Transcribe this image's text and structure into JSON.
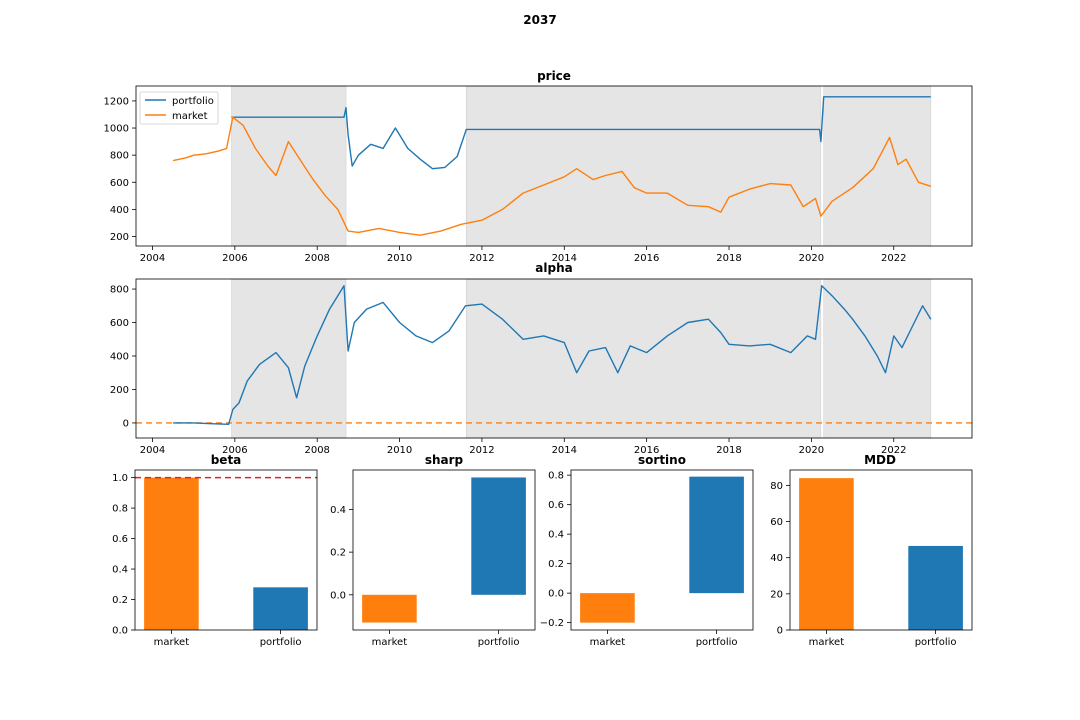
{
  "figure_title": "2037",
  "colors": {
    "portfolio": "#1f77b4",
    "market": "#ff7f0e",
    "shade": "#e5e5e5",
    "ref_line": "#d62728"
  },
  "shaded_periods": [
    [
      2005.92,
      2008.7
    ],
    [
      2011.62,
      2020.23
    ],
    [
      2020.3,
      2022.9
    ]
  ],
  "chart_data": [
    {
      "id": "price",
      "type": "line",
      "title": "price",
      "xlim": [
        2003.6,
        2023.9
      ],
      "ylim": [
        130,
        1310
      ],
      "xticks": [
        "2004",
        "2006",
        "2008",
        "2010",
        "2012",
        "2014",
        "2016",
        "2018",
        "2020",
        "2022"
      ],
      "yticks": [
        "200",
        "400",
        "600",
        "800",
        "1000",
        "1200"
      ],
      "legend": {
        "placement": "top-left",
        "entries": [
          "portfolio",
          "market"
        ]
      },
      "series": [
        {
          "name": "portfolio",
          "x": [
            2005.92,
            2008.65,
            2008.7,
            2008.75,
            2008.85,
            2009.0,
            2009.3,
            2009.6,
            2009.9,
            2010.2,
            2010.5,
            2010.8,
            2011.1,
            2011.4,
            2011.62,
            2020.2,
            2020.23,
            2020.3,
            2022.9
          ],
          "y": [
            1080,
            1080,
            1150,
            950,
            720,
            800,
            880,
            850,
            1000,
            850,
            770,
            700,
            710,
            790,
            990,
            990,
            900,
            1230,
            1230
          ]
        },
        {
          "name": "market",
          "x": [
            2004.5,
            2004.8,
            2005.0,
            2005.3,
            2005.6,
            2005.8,
            2005.95,
            2006.2,
            2006.5,
            2006.8,
            2007.0,
            2007.3,
            2007.6,
            2007.9,
            2008.2,
            2008.5,
            2008.75,
            2009.0,
            2009.5,
            2010.0,
            2010.5,
            2011.0,
            2011.5,
            2012.0,
            2012.5,
            2013.0,
            2013.5,
            2014.0,
            2014.3,
            2014.7,
            2015.0,
            2015.4,
            2015.7,
            2016.0,
            2016.5,
            2017.0,
            2017.5,
            2017.8,
            2018.0,
            2018.5,
            2019.0,
            2019.5,
            2019.8,
            2020.1,
            2020.23,
            2020.5,
            2021.0,
            2021.5,
            2021.9,
            2022.1,
            2022.3,
            2022.6,
            2022.9
          ],
          "y": [
            760,
            780,
            800,
            810,
            830,
            850,
            1080,
            1020,
            850,
            720,
            650,
            900,
            760,
            620,
            500,
            400,
            240,
            230,
            260,
            230,
            210,
            240,
            290,
            320,
            400,
            520,
            580,
            640,
            700,
            620,
            650,
            680,
            560,
            520,
            520,
            430,
            420,
            380,
            490,
            550,
            590,
            580,
            420,
            480,
            350,
            460,
            560,
            700,
            930,
            730,
            770,
            600,
            570
          ]
        }
      ]
    },
    {
      "id": "alpha",
      "type": "line",
      "title": "alpha",
      "xlim": [
        2003.6,
        2023.9
      ],
      "ylim": [
        -90,
        860
      ],
      "xticks": [
        "2004",
        "2006",
        "2008",
        "2010",
        "2012",
        "2014",
        "2016",
        "2018",
        "2020",
        "2022"
      ],
      "yticks": [
        "0",
        "200",
        "400",
        "600",
        "800"
      ],
      "reference_line": {
        "y": 0,
        "color": "#ff7f0e",
        "style": "dashed"
      },
      "series": [
        {
          "name": "alpha",
          "x": [
            2004.5,
            2005.0,
            2005.5,
            2005.85,
            2005.95,
            2006.1,
            2006.3,
            2006.6,
            2007.0,
            2007.3,
            2007.5,
            2007.7,
            2008.0,
            2008.3,
            2008.65,
            2008.75,
            2008.9,
            2009.2,
            2009.6,
            2010.0,
            2010.4,
            2010.8,
            2011.2,
            2011.6,
            2012.0,
            2012.5,
            2013.0,
            2013.5,
            2014.0,
            2014.3,
            2014.6,
            2015.0,
            2015.3,
            2015.6,
            2016.0,
            2016.5,
            2017.0,
            2017.5,
            2017.8,
            2018.0,
            2018.5,
            2019.0,
            2019.5,
            2019.9,
            2020.1,
            2020.25,
            2020.5,
            2020.8,
            2021.0,
            2021.3,
            2021.6,
            2021.8,
            2022.0,
            2022.2,
            2022.5,
            2022.7,
            2022.9
          ],
          "y": [
            0,
            0,
            -5,
            -8,
            80,
            120,
            250,
            350,
            420,
            330,
            150,
            340,
            520,
            680,
            820,
            430,
            600,
            680,
            720,
            600,
            520,
            480,
            550,
            700,
            710,
            620,
            500,
            520,
            480,
            300,
            430,
            450,
            300,
            460,
            420,
            520,
            600,
            620,
            540,
            470,
            460,
            470,
            420,
            520,
            500,
            820,
            760,
            680,
            620,
            520,
            400,
            300,
            520,
            450,
            600,
            700,
            620
          ]
        }
      ]
    },
    {
      "id": "beta",
      "type": "bar",
      "title": "beta",
      "categories": [
        "market",
        "portfolio"
      ],
      "values": [
        1.0,
        0.28
      ],
      "ylim": [
        0,
        1.05
      ],
      "yticks": [
        "0.0",
        "0.2",
        "0.4",
        "0.6",
        "0.8",
        "1.0"
      ],
      "reference_line": {
        "y": 1.0,
        "color": "#d62728",
        "style": "dashed"
      }
    },
    {
      "id": "sharp",
      "type": "bar",
      "title": "sharp",
      "categories": [
        "market",
        "portfolio"
      ],
      "values": [
        -0.13,
        0.55
      ],
      "ylim": [
        -0.165,
        0.585
      ],
      "yticks": [
        "0.0",
        "0.2",
        "0.4"
      ]
    },
    {
      "id": "sortino",
      "type": "bar",
      "title": "sortino",
      "categories": [
        "market",
        "portfolio"
      ],
      "values": [
        -0.2,
        0.79
      ],
      "ylim": [
        -0.25,
        0.835
      ],
      "yticks": [
        "−0.2",
        "0.0",
        "0.2",
        "0.4",
        "0.6",
        "0.8"
      ]
    },
    {
      "id": "mdd",
      "type": "bar",
      "title": "MDD",
      "categories": [
        "market",
        "portfolio"
      ],
      "values": [
        84,
        46.5
      ],
      "ylim": [
        0,
        88.5
      ],
      "yticks": [
        "0",
        "20",
        "40",
        "60",
        "80"
      ]
    }
  ]
}
